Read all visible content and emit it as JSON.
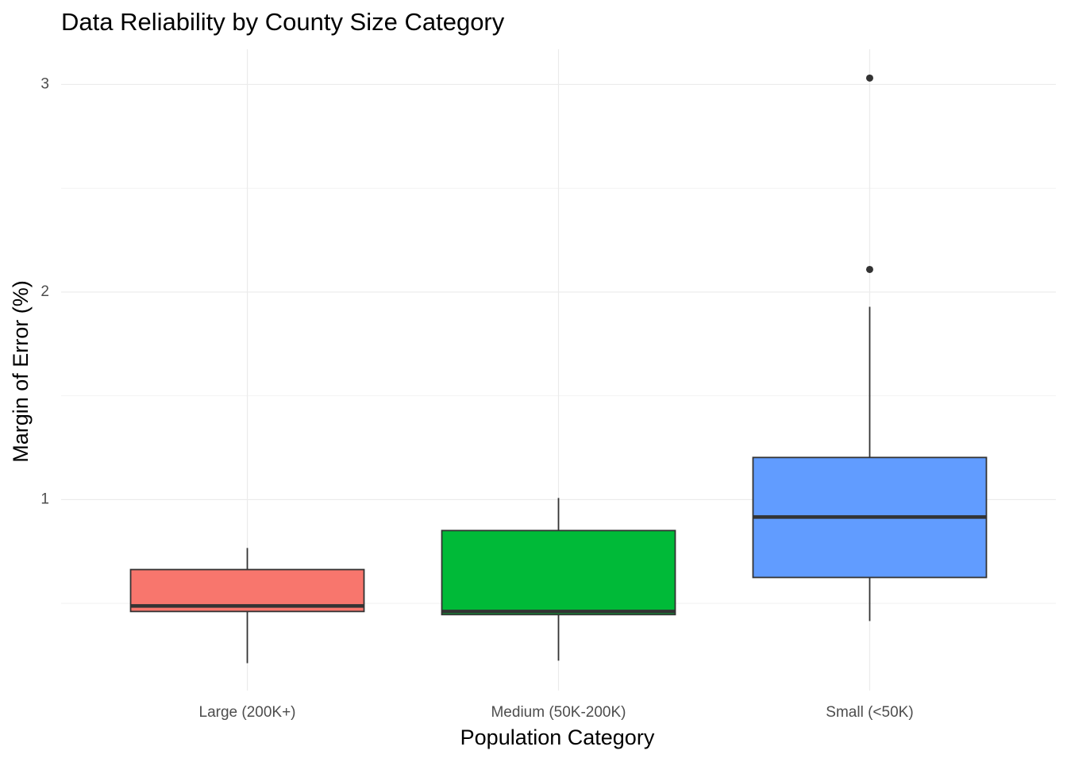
{
  "chart_data": {
    "type": "boxplot",
    "title": "Data Reliability by County Size Category",
    "x_label": "Population Category",
    "y_label": "Margin of Error (%)",
    "categories": [
      "Large (200K+)",
      "Medium (50K-200K)",
      "Small (<50K)"
    ],
    "colors": [
      "#F8766D",
      "#00BA38",
      "#619CFF"
    ],
    "boxes": [
      {
        "min": 0.212,
        "q1": 0.461,
        "median": 0.488,
        "q3": 0.663,
        "max": 0.767,
        "outliers": []
      },
      {
        "min": 0.224,
        "q1": 0.446,
        "median": 0.461,
        "q3": 0.851,
        "max": 1.008,
        "outliers": []
      },
      {
        "min": 0.415,
        "q1": 0.625,
        "median": 0.916,
        "q3": 1.203,
        "max": 1.929,
        "outliers": [
          3.031,
          2.109
        ]
      }
    ],
    "ylim": [
      0.08,
      3.17
    ],
    "yticks": [
      1,
      2,
      3
    ],
    "yminor": [
      0.5,
      1.5,
      2.5
    ],
    "grid": true
  }
}
